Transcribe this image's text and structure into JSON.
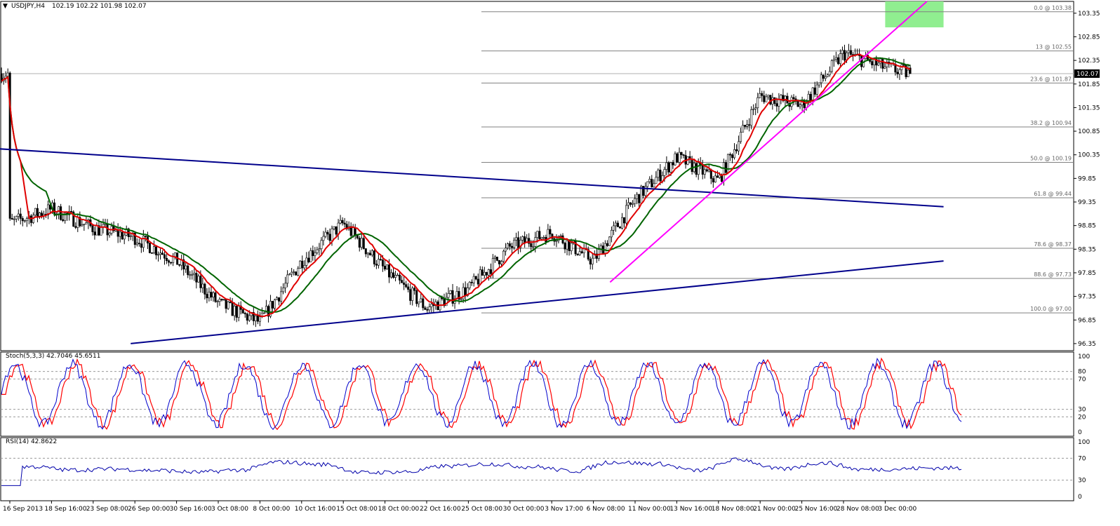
{
  "header": {
    "menu_icon": "triangle-down-icon",
    "symbol": "USDJPY,H4",
    "ohlc": "102.19 102.22 101.98 102.07"
  },
  "colors": {
    "bull_candle": "#ffffff",
    "bear_candle": "#000000",
    "fast_ma": "#e00000",
    "slow_ma": "#006400",
    "ma_turn": "#e0e000",
    "channel": "#00008b",
    "uptrend": "#ff00ff",
    "fib": "#808080",
    "target_zone": "#90ee90",
    "stoch_main": "#0000cc",
    "stoch_signal": "#ff0000",
    "rsi": "#0000aa"
  },
  "price_axis": {
    "ticks": [
      "103.35",
      "102.85",
      "102.35",
      "101.85",
      "101.35",
      "100.85",
      "100.35",
      "99.85",
      "99.35",
      "98.85",
      "98.35",
      "97.85",
      "97.35",
      "96.85",
      "96.35"
    ],
    "current_price": "102.07"
  },
  "time_axis": [
    "16 Sep 2013",
    "18 Sep 16:00",
    "23 Sep 08:00",
    "26 Sep 00:00",
    "30 Sep 16:00",
    "3 Oct 08:00",
    "8 Oct 00:00",
    "10 Oct 16:00",
    "15 Oct 08:00",
    "18 Oct 00:00",
    "22 Oct 16:00",
    "25 Oct 08:00",
    "30 Oct 00:00",
    "3 Nov 17:00",
    "6 Nov 08:00",
    "11 Nov 00:00",
    "13 Nov 16:00",
    "18 Nov 08:00",
    "21 Nov 00:00",
    "25 Nov 16:00",
    "28 Nov 08:00",
    "3 Dec 00:00"
  ],
  "fibonacci": [
    {
      "label": "0.0 @ 103.38",
      "price": 103.38
    },
    {
      "label": "13 @ 102.55",
      "price": 102.55
    },
    {
      "label": "23.6 @ 101.87",
      "price": 101.87
    },
    {
      "label": "38.2 @ 100.94",
      "price": 100.94
    },
    {
      "label": "50.0 @ 100.19",
      "price": 100.19
    },
    {
      "label": "61.8 @ 99.44",
      "price": 99.44
    },
    {
      "label": "78.6 @ 98.37",
      "price": 98.37
    },
    {
      "label": "88.6 @ 97.73",
      "price": 97.73
    },
    {
      "label": "100.0 @ 97.00",
      "price": 97.0
    }
  ],
  "stochastic": {
    "label": "Stoch(5,3,3) 42.7046 45.6511",
    "ticks": [
      "100",
      "80",
      "70",
      "30",
      "20",
      "0"
    ]
  },
  "rsi": {
    "label": "RSI(14) 42.8622",
    "ticks": [
      "100",
      "70",
      "30",
      "0"
    ]
  },
  "chart_data": {
    "type": "candlestick",
    "symbol": "USDJPY",
    "timeframe": "H4",
    "ylim": [
      96.2,
      103.6
    ],
    "x_categories": [
      "16 Sep 2013",
      "18 Sep 16:00",
      "23 Sep 08:00",
      "26 Sep 00:00",
      "30 Sep 16:00",
      "3 Oct 08:00",
      "8 Oct 00:00",
      "10 Oct 16:00",
      "15 Oct 08:00",
      "18 Oct 00:00",
      "22 Oct 16:00",
      "25 Oct 08:00",
      "30 Oct 00:00",
      "3 Nov 17:00",
      "6 Nov 08:00",
      "11 Nov 00:00",
      "13 Nov 16:00",
      "18 Nov 08:00",
      "21 Nov 00:00",
      "25 Nov 16:00",
      "28 Nov 08:00",
      "3 Dec 00:00"
    ],
    "close_path": [
      [
        0,
        98.9
      ],
      [
        1,
        99.2
      ],
      [
        2,
        98.8
      ],
      [
        3,
        98.6
      ],
      [
        4,
        98.1
      ],
      [
        5,
        97.2
      ],
      [
        6,
        96.8
      ],
      [
        7,
        98.1
      ],
      [
        8,
        98.9
      ],
      [
        9,
        97.9
      ],
      [
        10,
        97.1
      ],
      [
        11,
        97.5
      ],
      [
        12,
        98.4
      ],
      [
        13,
        98.7
      ],
      [
        14,
        98.1
      ],
      [
        15,
        99.4
      ],
      [
        16,
        100.3
      ],
      [
        17,
        99.8
      ],
      [
        18,
        101.6
      ],
      [
        19,
        101.4
      ],
      [
        20,
        102.5
      ],
      [
        21,
        102.2
      ],
      [
        21.6,
        102.07
      ]
    ],
    "last": {
      "open": 102.19,
      "high": 102.22,
      "low": 101.98,
      "close": 102.07
    },
    "indicators": {
      "stoch_last": {
        "main": 42.7046,
        "signal": 45.6511
      },
      "rsi_last": 42.8622
    },
    "trendlines": [
      {
        "name": "upper-channel",
        "from": [
          -0.7,
          100.5
        ],
        "to": [
          22.4,
          99.25
        ]
      },
      {
        "name": "lower-channel",
        "from": [
          2.9,
          96.35
        ],
        "to": [
          22.4,
          98.1
        ]
      },
      {
        "name": "uptrend",
        "from": [
          14.4,
          97.65
        ],
        "to": [
          22.0,
          103.6
        ]
      }
    ],
    "target_zone": {
      "x": [
        21.0,
        22.4
      ],
      "y": [
        103.05,
        103.6
      ]
    },
    "grid": false
  }
}
